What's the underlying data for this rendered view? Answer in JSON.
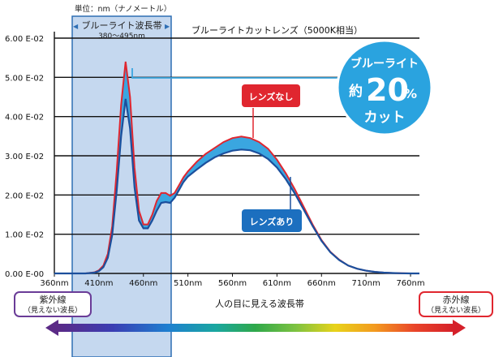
{
  "unit_label": "単位：nm（ナノメートル）",
  "band_label": "ブルーライト波長帯",
  "band_range": "380～495nm",
  "chart_title": "ブルーライトカットレンズ（5000K相当）",
  "badge": {
    "line1": "ブルーライト",
    "prefix": "約",
    "number": "20",
    "percent": "%",
    "line3": "カット"
  },
  "uv_label": "紫外線",
  "uv_sub": "（見えない波長）",
  "ir_label": "赤外線",
  "ir_sub": "（見えない波長）",
  "visible_label": "人の目に見える波長帯",
  "colors": {
    "band_fill": "#c5d8ef",
    "band_border": "#2f6fb4",
    "area_fill": "#3aa6e0",
    "no_lens_line": "#e0262f",
    "with_lens_line": "#1c4f9c",
    "badge_bg": "#2aa3df",
    "uv_border": "#6a3c97",
    "ir_border": "#e0262f"
  },
  "chart_data": {
    "type": "line",
    "x": [
      360,
      395,
      405,
      410,
      415,
      420,
      425,
      430,
      435,
      440,
      445,
      450,
      455,
      460,
      465,
      470,
      475,
      480,
      485,
      490,
      495,
      500,
      505,
      510,
      520,
      530,
      540,
      550,
      560,
      570,
      580,
      590,
      600,
      610,
      620,
      630,
      640,
      650,
      660,
      670,
      680,
      690,
      700,
      710,
      720,
      730,
      740,
      750,
      760,
      770
    ],
    "ylim": [
      0,
      0.06
    ],
    "xlim": [
      360,
      770
    ],
    "series": [
      {
        "name": "レンズなし",
        "values": [
          0,
          0,
          0.0003,
          0.0008,
          0.002,
          0.005,
          0.012,
          0.026,
          0.043,
          0.054,
          0.045,
          0.027,
          0.016,
          0.0125,
          0.0125,
          0.015,
          0.0185,
          0.0205,
          0.0205,
          0.0198,
          0.0205,
          0.0225,
          0.0245,
          0.026,
          0.0285,
          0.0305,
          0.032,
          0.0335,
          0.0345,
          0.0349,
          0.0345,
          0.0335,
          0.0318,
          0.029,
          0.0255,
          0.0215,
          0.017,
          0.0125,
          0.0085,
          0.0055,
          0.0035,
          0.002,
          0.0012,
          0.0007,
          0.0004,
          0.0002,
          0.0001,
          5e-05,
          0,
          0
        ]
      },
      {
        "name": "レンズあり",
        "values": [
          0,
          0,
          0.0002,
          0.0006,
          0.0016,
          0.004,
          0.0098,
          0.021,
          0.035,
          0.0445,
          0.037,
          0.022,
          0.0135,
          0.0115,
          0.0115,
          0.0135,
          0.016,
          0.018,
          0.0182,
          0.018,
          0.0193,
          0.0213,
          0.0233,
          0.0247,
          0.0265,
          0.0282,
          0.0296,
          0.0306,
          0.0313,
          0.0316,
          0.0314,
          0.0306,
          0.0292,
          0.027,
          0.024,
          0.0204,
          0.0163,
          0.0121,
          0.0083,
          0.0054,
          0.0034,
          0.002,
          0.0012,
          0.0007,
          0.0004,
          0.0002,
          0.0001,
          5e-05,
          0,
          0
        ]
      }
    ],
    "y_ticks": [
      "0.00 E-00",
      "1.00 E-02",
      "2.00 E-02",
      "3.00 E-02",
      "4.00 E-02",
      "5.00 E-02",
      "6.00 E-02"
    ],
    "x_ticks": [
      "360nm",
      "410nm",
      "460nm",
      "510nm",
      "560nm",
      "610nm",
      "660nm",
      "710nm",
      "760nm"
    ],
    "x_tick_values": [
      360,
      410,
      460,
      510,
      560,
      610,
      660,
      710,
      760
    ]
  }
}
